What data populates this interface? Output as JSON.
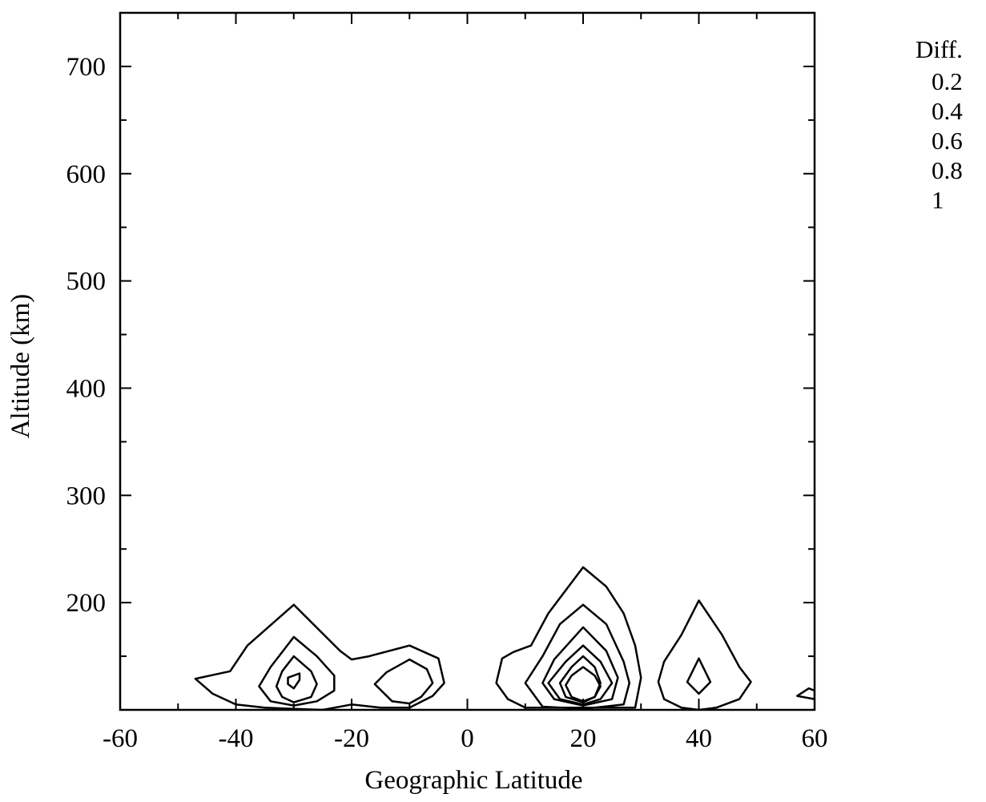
{
  "chart_data": {
    "type": "contour",
    "xlabel": "Geographic Latitude",
    "ylabel": "Altitude (km)",
    "xlim": [
      -60,
      60
    ],
    "ylim": [
      100,
      750
    ],
    "xticks": [
      -60,
      -40,
      -20,
      0,
      20,
      40,
      60
    ],
    "xtick_labels": [
      "-60",
      "-40",
      "-20",
      "0",
      "20",
      "40",
      "60"
    ],
    "yticks": [
      200,
      300,
      400,
      500,
      600,
      700
    ],
    "ytick_labels": [
      "200",
      "300",
      "400",
      "500",
      "600",
      "700"
    ],
    "grid": false,
    "legend": {
      "position": "top-right",
      "title": "Diff.",
      "levels": [
        "0.2",
        "0.4",
        "0.6",
        "0.8",
        "1"
      ]
    },
    "contours": [
      {
        "level": 0.2,
        "points": [
          [
            -47,
            129
          ],
          [
            -41,
            136
          ],
          [
            -38,
            160
          ],
          [
            -30,
            198
          ],
          [
            -22,
            155
          ],
          [
            -20,
            147
          ],
          [
            -17,
            150
          ],
          [
            -10,
            160
          ],
          [
            -5,
            148
          ],
          [
            -4,
            125
          ],
          [
            -6,
            113
          ],
          [
            -10,
            102
          ],
          [
            -15,
            102
          ],
          [
            -20,
            105
          ],
          [
            -25,
            100
          ],
          [
            -30,
            101
          ],
          [
            -35,
            102
          ],
          [
            -40,
            105
          ],
          [
            -44,
            115
          ],
          [
            -47,
            129
          ]
        ]
      },
      {
        "level": 0.4,
        "points": [
          [
            -36,
            122
          ],
          [
            -34,
            140
          ],
          [
            -30,
            168
          ],
          [
            -26,
            150
          ],
          [
            -23,
            132
          ],
          [
            -23,
            118
          ],
          [
            -26,
            108
          ],
          [
            -30,
            104
          ],
          [
            -34,
            108
          ],
          [
            -36,
            122
          ]
        ]
      },
      {
        "level": 0.6,
        "points": [
          [
            -33,
            122
          ],
          [
            -32,
            136
          ],
          [
            -30,
            150
          ],
          [
            -27,
            136
          ],
          [
            -26,
            124
          ],
          [
            -27,
            112
          ],
          [
            -30,
            107
          ],
          [
            -32,
            112
          ],
          [
            -33,
            122
          ]
        ]
      },
      {
        "level": 1.0,
        "points": [
          [
            -31,
            130
          ],
          [
            -29,
            134
          ],
          [
            -29,
            128
          ],
          [
            -30,
            120
          ],
          [
            -31,
            124
          ],
          [
            -31,
            130
          ]
        ]
      },
      {
        "level": 0.2,
        "points": [
          [
            -16,
            124
          ],
          [
            -14,
            135
          ],
          [
            -10,
            147
          ],
          [
            -7,
            138
          ],
          [
            -6,
            125
          ],
          [
            -8,
            112
          ],
          [
            -10,
            106
          ],
          [
            -13,
            108
          ],
          [
            -16,
            124
          ]
        ]
      },
      {
        "level": 0.2,
        "points": [
          [
            5,
            125
          ],
          [
            6,
            148
          ],
          [
            8,
            154
          ],
          [
            11,
            160
          ],
          [
            14,
            190
          ],
          [
            20,
            233
          ],
          [
            24,
            215
          ],
          [
            27,
            190
          ],
          [
            29,
            160
          ],
          [
            30,
            130
          ],
          [
            29,
            102
          ],
          [
            15,
            102
          ],
          [
            10,
            102
          ],
          [
            7,
            110
          ],
          [
            5,
            125
          ]
        ]
      },
      {
        "level": 0.4,
        "points": [
          [
            10,
            125
          ],
          [
            13,
            150
          ],
          [
            16,
            180
          ],
          [
            20,
            198
          ],
          [
            24,
            180
          ],
          [
            27,
            145
          ],
          [
            28,
            125
          ],
          [
            27,
            105
          ],
          [
            20,
            101
          ],
          [
            13,
            103
          ],
          [
            10,
            125
          ]
        ]
      },
      {
        "level": 0.6,
        "points": [
          [
            13,
            125
          ],
          [
            15,
            147
          ],
          [
            20,
            177
          ],
          [
            24,
            155
          ],
          [
            26,
            130
          ],
          [
            25,
            110
          ],
          [
            20,
            104
          ],
          [
            15,
            110
          ],
          [
            13,
            125
          ]
        ]
      },
      {
        "level": 0.8,
        "points": [
          [
            14,
            125
          ],
          [
            17,
            145
          ],
          [
            20,
            160
          ],
          [
            23,
            145
          ],
          [
            25,
            125
          ],
          [
            23,
            110
          ],
          [
            20,
            105
          ],
          [
            16,
            110
          ],
          [
            14,
            125
          ]
        ]
      },
      {
        "level": 0.9,
        "points": [
          [
            16,
            125
          ],
          [
            18,
            140
          ],
          [
            20,
            150
          ],
          [
            22,
            140
          ],
          [
            23,
            125
          ],
          [
            22,
            112
          ],
          [
            20,
            107
          ],
          [
            17,
            112
          ],
          [
            16,
            125
          ]
        ]
      },
      {
        "level": 1.0,
        "points": [
          [
            17,
            123
          ],
          [
            18,
            132
          ],
          [
            20,
            140
          ],
          [
            22,
            132
          ],
          [
            23,
            122
          ],
          [
            22,
            112
          ],
          [
            20,
            108
          ],
          [
            18,
            112
          ],
          [
            17,
            123
          ]
        ]
      },
      {
        "level": 0.2,
        "points": [
          [
            33,
            126
          ],
          [
            34,
            145
          ],
          [
            37,
            170
          ],
          [
            40,
            202
          ],
          [
            44,
            170
          ],
          [
            47,
            140
          ],
          [
            49,
            126
          ],
          [
            47,
            110
          ],
          [
            43,
            102
          ],
          [
            40,
            100
          ],
          [
            37,
            102
          ],
          [
            34,
            110
          ],
          [
            33,
            126
          ]
        ]
      },
      {
        "level": 0.6,
        "points": [
          [
            38,
            126
          ],
          [
            40,
            148
          ],
          [
            42,
            126
          ],
          [
            40,
            115
          ],
          [
            38,
            126
          ]
        ]
      },
      {
        "level": 0.2,
        "points": [
          [
            57,
            113
          ],
          [
            59,
            120
          ],
          [
            60,
            118
          ],
          [
            60,
            110
          ],
          [
            57,
            113
          ]
        ]
      }
    ]
  }
}
